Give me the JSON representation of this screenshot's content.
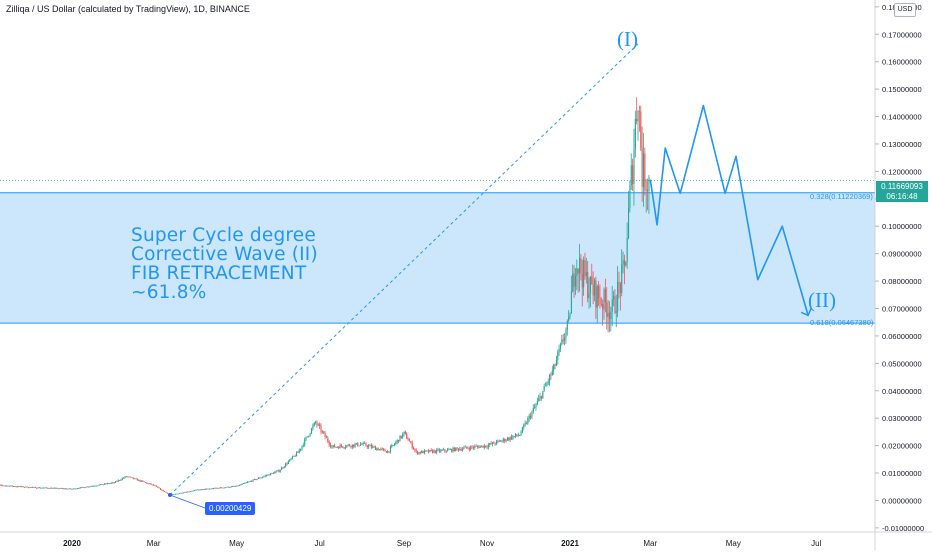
{
  "header": {
    "title": "Zilliqa / US Dollar (calculated by TradingView), 1D, BINANCE",
    "currency_button": "USD"
  },
  "colors": {
    "up": "#26a69a",
    "down": "#ef5350",
    "accent": "#2196f3",
    "fib_zone": "#bbdefb"
  },
  "price_tags": {
    "last_price": "0.11669093",
    "countdown": "06:16:48",
    "start_price": "0.00200429"
  },
  "annotation": {
    "line1": "Super Cycle degree",
    "line2": "Corrective Wave (II)",
    "line3": "FIB RETRACEMENT",
    "line4": "~61.8%"
  },
  "wave_labels": {
    "wave1": "(I)",
    "wave2": "(II)"
  },
  "fib": {
    "upper_label": "0.328(0.11220369)",
    "lower_label": "0.618(0.06467380)",
    "upper_value": 0.11220369,
    "lower_value": 0.0646738
  },
  "chart_data": {
    "type": "candlestick",
    "title": "Zilliqa / US Dollar (calculated by TradingView), 1D, BINANCE",
    "ylim": [
      -0.0115,
      0.1825
    ],
    "y_ticks": [
      "0.18000000",
      "0.17000000",
      "0.16000000",
      "0.15000000",
      "0.14000000",
      "0.13000000",
      "0.12000000",
      "0.11000000",
      "0.10000000",
      "0.09000000",
      "0.08000000",
      "0.07000000",
      "0.06000000",
      "0.05000000",
      "0.04000000",
      "0.03000000",
      "0.02000000",
      "0.01000000",
      "0.00000000",
      "-0.01000000"
    ],
    "y_tick_values": [
      0.18,
      0.17,
      0.16,
      0.15,
      0.14,
      0.13,
      0.12,
      0.11,
      0.1,
      0.09,
      0.08,
      0.07,
      0.06,
      0.05,
      0.04,
      0.03,
      0.02,
      0.01,
      0.0,
      -0.01
    ],
    "x_ticks": [
      "2020",
      "Mar",
      "May",
      "Jul",
      "Sep",
      "Nov",
      "2021",
      "Mar",
      "May",
      "Jul"
    ],
    "x_tick_dates": [
      "2020-01-01",
      "2020-03-01",
      "2020-05-01",
      "2020-07-01",
      "2020-09-01",
      "2020-11-01",
      "2021-01-01",
      "2021-03-01",
      "2021-05-01",
      "2021-07-01"
    ],
    "date_range": [
      "2019-11-01",
      "2021-08-31"
    ],
    "price_path": [
      [
        "2019-11-01",
        0.0058
      ],
      [
        "2019-12-01",
        0.0048
      ],
      [
        "2020-01-01",
        0.0042
      ],
      [
        "2020-02-01",
        0.0065
      ],
      [
        "2020-02-10",
        0.0088
      ],
      [
        "2020-03-01",
        0.0055
      ],
      [
        "2020-03-13",
        0.002
      ],
      [
        "2020-04-01",
        0.0038
      ],
      [
        "2020-05-01",
        0.0052
      ],
      [
        "2020-06-01",
        0.0108
      ],
      [
        "2020-06-15",
        0.0175
      ],
      [
        "2020-06-28",
        0.0285
      ],
      [
        "2020-07-10",
        0.0195
      ],
      [
        "2020-08-01",
        0.0205
      ],
      [
        "2020-08-20",
        0.0178
      ],
      [
        "2020-09-01",
        0.0245
      ],
      [
        "2020-09-10",
        0.0175
      ],
      [
        "2020-10-01",
        0.0182
      ],
      [
        "2020-11-01",
        0.02
      ],
      [
        "2020-11-25",
        0.024
      ],
      [
        "2020-12-10",
        0.0375
      ],
      [
        "2020-12-20",
        0.048
      ],
      [
        "2020-12-31",
        0.065
      ],
      [
        "2021-01-05",
        0.088
      ],
      [
        "2021-01-15",
        0.078
      ],
      [
        "2021-02-01",
        0.069
      ],
      [
        "2021-02-10",
        0.084
      ],
      [
        "2021-02-20",
        0.15
      ],
      [
        "2021-02-23",
        0.12
      ],
      [
        "2021-02-28",
        0.117
      ]
    ],
    "wave1_line": {
      "from": [
        "2020-03-13",
        0.002
      ],
      "to": [
        "2021-02-20",
        0.1665
      ]
    },
    "projection": [
      [
        "2021-03-01",
        0.117
      ],
      [
        "2021-03-06",
        0.1005
      ],
      [
        "2021-03-12",
        0.1285
      ],
      [
        "2021-03-23",
        0.112
      ],
      [
        "2021-04-09",
        0.144
      ],
      [
        "2021-04-25",
        0.112
      ],
      [
        "2021-05-03",
        0.1255
      ],
      [
        "2021-05-19",
        0.0805
      ],
      [
        "2021-06-06",
        0.1
      ],
      [
        "2021-06-25",
        0.0675
      ]
    ]
  }
}
